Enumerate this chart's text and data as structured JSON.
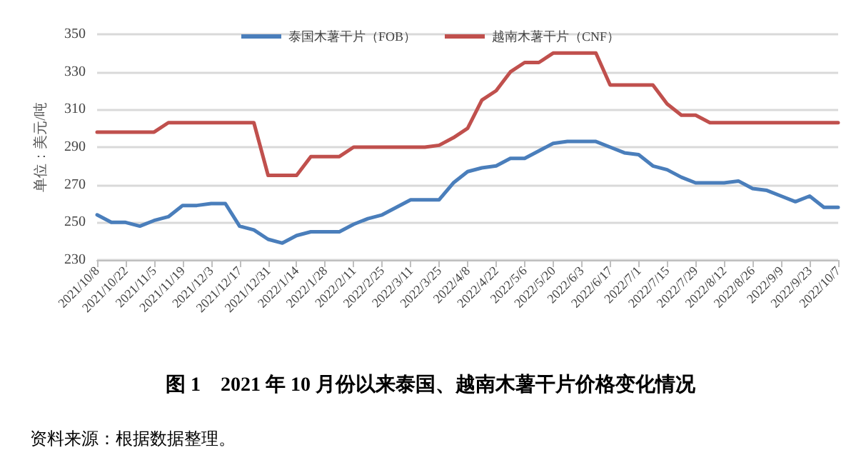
{
  "chart_data": {
    "type": "line",
    "title": "图 1　2021 年 10 月份以来泰国、越南木薯干片价格变化情况",
    "ylabel": "单位：美元/吨",
    "annotations": [
      "资料来源：根据数据整理。"
    ],
    "categories": [
      "2021/10/8",
      null,
      "2021/10/22",
      null,
      "2021/11/5",
      null,
      "2021/11/19",
      null,
      "2021/12/3",
      null,
      "2021/12/17",
      null,
      "2021/12/31",
      null,
      "2022/1/14",
      null,
      "2022/1/28",
      null,
      "2022/2/11",
      null,
      "2022/2/25",
      null,
      "2022/3/11",
      null,
      "2022/3/25",
      null,
      "2022/4/8",
      null,
      "2022/4/22",
      null,
      "2022/5/6",
      null,
      "2022/5/20",
      null,
      "2022/6/3",
      null,
      "2022/6/17",
      null,
      "2022/7/1",
      null,
      "2022/7/15",
      null,
      "2022/7/29",
      null,
      "2022/8/12",
      null,
      "2022/8/26",
      null,
      "2022/9/9",
      null,
      "2022/9/23",
      null,
      "2022/10/7"
    ],
    "series": [
      {
        "name": "泰国木薯干片（FOB）",
        "color": "#4a7ebb",
        "values": [
          254,
          250,
          250,
          248,
          251,
          253,
          259,
          259,
          260,
          260,
          248,
          246,
          241,
          239,
          243,
          245,
          245,
          245,
          249,
          252,
          254,
          258,
          262,
          262,
          262,
          271,
          277,
          279,
          280,
          284,
          284,
          288,
          292,
          293,
          293,
          293,
          290,
          287,
          286,
          280,
          278,
          274,
          271,
          271,
          271,
          272,
          268,
          267,
          264,
          261,
          264,
          258,
          258
        ]
      },
      {
        "name": "越南木薯干片（CNF）",
        "color": "#c0504d",
        "values": [
          298,
          298,
          298,
          298,
          298,
          303,
          303,
          303,
          303,
          303,
          303,
          303,
          275,
          275,
          275,
          285,
          285,
          285,
          290,
          290,
          290,
          290,
          290,
          290,
          291,
          295,
          300,
          315,
          320,
          330,
          335,
          335,
          340,
          340,
          340,
          340,
          323,
          323,
          323,
          323,
          313,
          307,
          307,
          303,
          303,
          303,
          303,
          303,
          303,
          303,
          303,
          303,
          303
        ]
      }
    ],
    "ylim": [
      230,
      350
    ],
    "yticks": [
      230,
      250,
      270,
      290,
      310,
      330,
      350
    ],
    "grid": "y",
    "legend": "top",
    "marker": "none",
    "line_style": "solid"
  }
}
